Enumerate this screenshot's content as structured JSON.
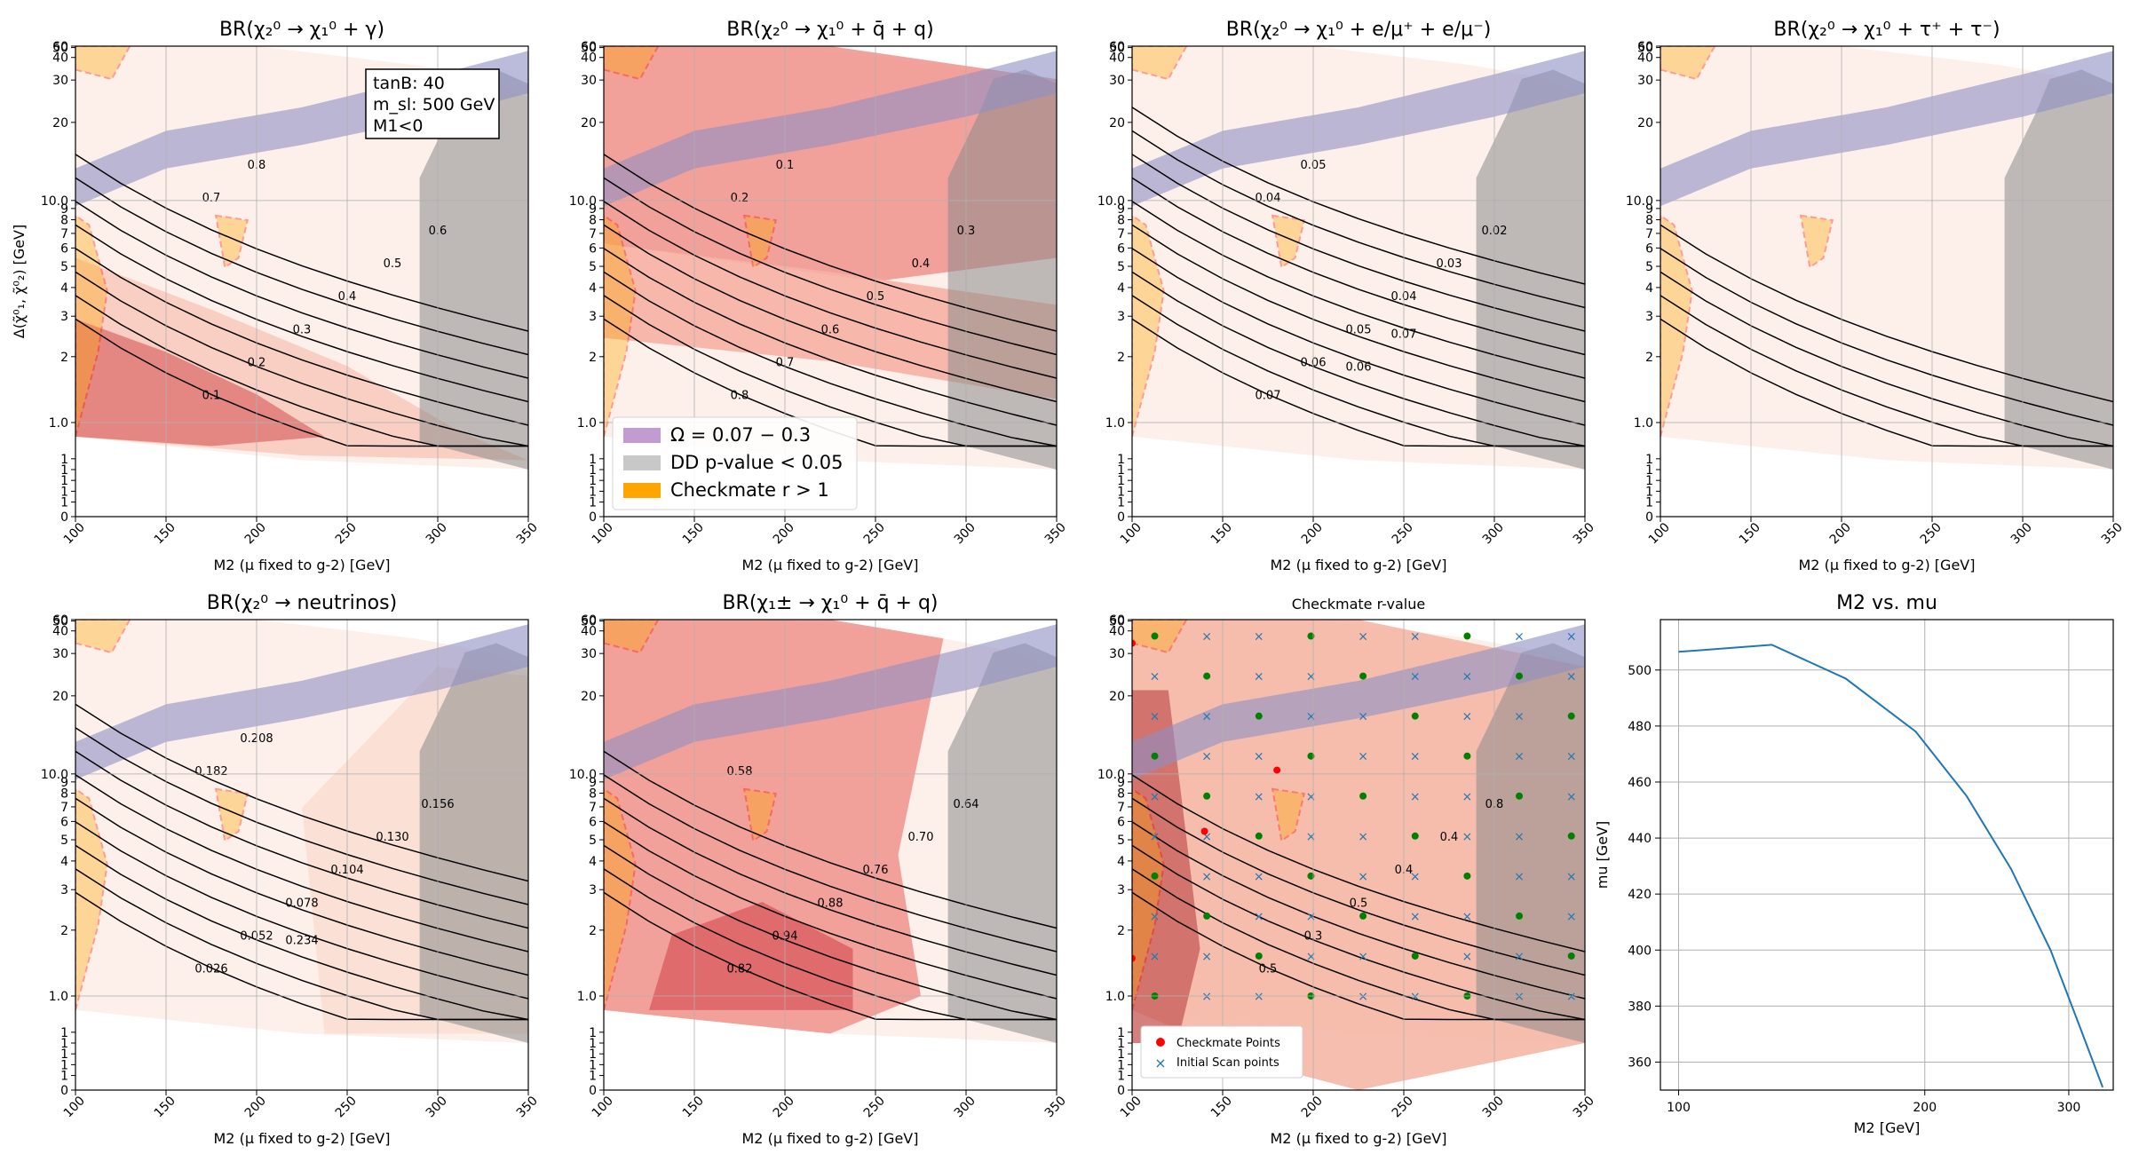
{
  "figure": {
    "annotation_lines": [
      "tanB: 40",
      "m_sl: 500 GeV",
      "M1<0"
    ],
    "legend_top": [
      "Ω = 0.07 − 0.3",
      "DD p-value < 0.05",
      "Checkmate r > 1"
    ],
    "legend_r": [
      "Checkmate Points",
      "Initial Scan points"
    ],
    "xlabel": "M2 (μ fixed to g-2) [GeV]",
    "ylabel": "Δ(χ̃⁰₁, χ̃⁰₂) [GeV]",
    "x_ticks": [
      "100",
      "150",
      "200",
      "250",
      "300",
      "350"
    ],
    "y_ticks": [
      "0",
      "1",
      "1",
      "1",
      "1",
      "1",
      "1.0",
      "2",
      "3",
      "4",
      "5",
      "6",
      "7",
      "8",
      "9",
      "10.0",
      "20",
      "30",
      "40",
      "50",
      "60"
    ],
    "colors": {
      "omega_band": "#8e8fc4",
      "dd_excluded": "#8a8a8a",
      "checkmate_excl": "#ffa500",
      "checkmate_edge": "#ff0000",
      "contour_line": "#000000",
      "br_fill_low": "#fdeee8",
      "br_fill_high": "#d9545a",
      "curve": "#1f77b4",
      "cm_point": "#ff0000",
      "scan_point": "#1f77b4",
      "good_point": "#008000"
    }
  },
  "chart_data": [
    {
      "type": "heatmap",
      "title": "BR(χ₂⁰ → χ₁⁰ + γ)",
      "xlabel": "M2 (μ fixed to g-2) [GeV]",
      "ylabel": "Δ(χ̃⁰₁, χ̃⁰₂) [GeV]",
      "xlim": [
        100,
        350
      ],
      "contour_labels": [
        "0.1",
        "0.2",
        "0.3",
        "0.4",
        "0.5",
        "0.6",
        "0.7",
        "0.8"
      ]
    },
    {
      "type": "heatmap",
      "title": "BR(χ₂⁰ → χ₁⁰ + q̄ + q)",
      "xlabel": "M2 (μ fixed to g-2) [GeV]",
      "xlim": [
        100,
        350
      ],
      "contour_labels": [
        "0.8",
        "0.7",
        "0.6",
        "0.5",
        "0.4",
        "0.3",
        "0.2",
        "0.1"
      ]
    },
    {
      "type": "heatmap",
      "title": "BR(χ₂⁰ → χ₁⁰ + e/μ⁺ + e/μ⁻)",
      "xlabel": "M2 (μ fixed to g-2) [GeV]",
      "xlim": [
        100,
        350
      ],
      "contour_labels": [
        "0.07",
        "0.06",
        "0.05",
        "0.04",
        "0.03",
        "0.02",
        "0.04",
        "0.05",
        "0.06",
        "0.07"
      ]
    },
    {
      "type": "heatmap",
      "title": "BR(χ₂⁰ → χ₁⁰ + τ⁺ + τ⁻)",
      "xlabel": "M2 (μ fixed to g-2) [GeV]",
      "xlim": [
        100,
        350
      ],
      "contour_labels": []
    },
    {
      "type": "heatmap",
      "title": "BR(χ₂⁰ → neutrinos)",
      "xlabel": "M2 (μ fixed to g-2) [GeV]",
      "xlim": [
        100,
        350
      ],
      "contour_labels": [
        "0.026",
        "0.052",
        "0.078",
        "0.104",
        "0.130",
        "0.156",
        "0.182",
        "0.208",
        "0.234"
      ]
    },
    {
      "type": "heatmap",
      "title": "BR(χ₁± → χ₁⁰ + q̄ + q)",
      "xlabel": "M2 (μ fixed to g-2) [GeV]",
      "xlim": [
        100,
        350
      ],
      "contour_labels": [
        "0.82",
        "0.94",
        "0.88",
        "0.76",
        "0.70",
        "0.64",
        "0.58"
      ]
    },
    {
      "type": "heatmap",
      "title": "Checkmate r-value",
      "xlabel": "M2 (μ fixed to g-2) [GeV]",
      "xlim": [
        100,
        350
      ],
      "contour_labels": [
        "0.5",
        "0.3",
        "0.5",
        "0.4",
        "0.4",
        "0.8"
      ]
    },
    {
      "type": "line",
      "title": "M2 vs. mu",
      "xlabel": "M2 [GeV]",
      "ylabel": "mu [GeV]",
      "x_log": true,
      "x_ticks": [
        "100",
        "200",
        "300"
      ],
      "y_ticks": [
        "360",
        "380",
        "400",
        "420",
        "440",
        "460",
        "480",
        "500"
      ],
      "xlim": [
        95,
        340
      ],
      "ylim": [
        350,
        518
      ],
      "series": [
        {
          "x": [
            100,
            130,
            160,
            195,
            225,
            255,
            285,
            310,
            330
          ],
          "y": [
            506.5,
            509,
            497,
            478,
            455,
            429,
            400,
            372,
            351
          ]
        }
      ]
    }
  ]
}
